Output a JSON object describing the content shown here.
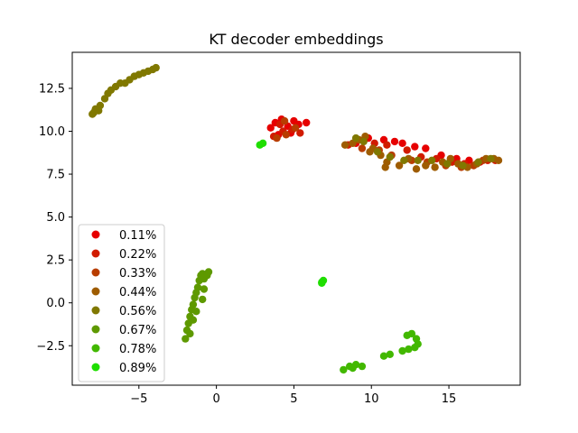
{
  "chart_data": {
    "type": "scatter",
    "title": "KT decoder embeddings",
    "xlabel": "",
    "ylabel": "",
    "xlim": [
      -9.3,
      19.6
    ],
    "ylim": [
      -4.8,
      14.6
    ],
    "xticks": [
      -5,
      0,
      5,
      10,
      15
    ],
    "xtick_labels": [
      "−5",
      "0",
      "5",
      "10",
      "15"
    ],
    "yticks": [
      -2.5,
      0.0,
      2.5,
      5.0,
      7.5,
      10.0,
      12.5
    ],
    "ytick_labels": [
      "−2.5",
      "0.0",
      "2.5",
      "5.0",
      "7.5",
      "10.0",
      "12.5"
    ],
    "grid": false,
    "legend_position": "lower-left",
    "series": [
      {
        "name": "0.11%",
        "color": "#e60000",
        "points": [
          [
            3.5,
            10.2
          ],
          [
            3.8,
            10.5
          ],
          [
            4.2,
            10.7
          ],
          [
            4.6,
            10.3
          ],
          [
            5.0,
            10.6
          ],
          [
            5.3,
            10.4
          ],
          [
            5.8,
            10.5
          ],
          [
            4.0,
            9.8
          ],
          [
            4.8,
            9.9
          ],
          [
            10.8,
            9.5
          ],
          [
            11.5,
            9.4
          ],
          [
            12.0,
            9.3
          ],
          [
            12.8,
            9.1
          ],
          [
            13.5,
            9.0
          ],
          [
            14.5,
            8.6
          ],
          [
            15.5,
            8.4
          ],
          [
            16.3,
            8.3
          ],
          [
            17.0,
            8.2
          ],
          [
            9.0,
            9.3
          ],
          [
            9.8,
            9.6
          ]
        ]
      },
      {
        "name": "0.22%",
        "color": "#d11b00",
        "points": [
          [
            3.7,
            9.7
          ],
          [
            4.3,
            10.0
          ],
          [
            4.9,
            10.1
          ],
          [
            5.4,
            9.9
          ],
          [
            4.1,
            10.4
          ],
          [
            10.2,
            9.3
          ],
          [
            11.0,
            9.2
          ],
          [
            12.3,
            8.9
          ],
          [
            13.2,
            8.5
          ],
          [
            14.2,
            8.4
          ],
          [
            15.2,
            8.2
          ],
          [
            16.0,
            8.1
          ],
          [
            17.5,
            8.3
          ],
          [
            18.0,
            8.3
          ],
          [
            8.5,
            9.2
          ]
        ]
      },
      {
        "name": "0.33%",
        "color": "#b83d00",
        "points": [
          [
            3.9,
            9.6
          ],
          [
            4.5,
            9.8
          ],
          [
            5.1,
            10.2
          ],
          [
            4.4,
            10.6
          ],
          [
            9.4,
            9.0
          ],
          [
            10.5,
            8.9
          ],
          [
            11.3,
            8.6
          ],
          [
            12.6,
            8.3
          ],
          [
            13.6,
            8.2
          ],
          [
            14.8,
            8.0
          ],
          [
            15.8,
            7.9
          ],
          [
            16.6,
            8.0
          ],
          [
            17.2,
            8.3
          ]
        ]
      },
      {
        "name": "0.44%",
        "color": "#9e5c00",
        "points": [
          [
            8.3,
            9.2
          ],
          [
            8.8,
            9.3
          ],
          [
            9.2,
            9.5
          ],
          [
            9.6,
            9.7
          ],
          [
            10.1,
            9.0
          ],
          [
            10.6,
            8.6
          ],
          [
            11.0,
            8.2
          ],
          [
            11.8,
            8.0
          ],
          [
            12.4,
            8.4
          ],
          [
            12.9,
            7.8
          ],
          [
            13.5,
            8.0
          ],
          [
            14.1,
            7.9
          ],
          [
            14.6,
            8.2
          ],
          [
            15.1,
            8.4
          ],
          [
            15.6,
            8.1
          ],
          [
            16.2,
            7.9
          ],
          [
            16.8,
            8.1
          ],
          [
            17.4,
            8.4
          ],
          [
            17.9,
            8.4
          ],
          [
            18.2,
            8.3
          ],
          [
            10.9,
            7.9
          ],
          [
            9.9,
            8.8
          ]
        ]
      },
      {
        "name": "0.56%",
        "color": "#807800",
        "points": [
          [
            -8.0,
            11.0
          ],
          [
            -7.8,
            11.3
          ],
          [
            -7.6,
            11.2
          ],
          [
            -7.5,
            11.5
          ],
          [
            -7.9,
            11.1
          ],
          [
            -7.2,
            11.9
          ],
          [
            -7.0,
            12.2
          ],
          [
            -6.8,
            12.4
          ],
          [
            -6.5,
            12.6
          ],
          [
            -6.2,
            12.8
          ],
          [
            -5.9,
            12.8
          ],
          [
            -5.6,
            13.0
          ],
          [
            -5.3,
            13.2
          ],
          [
            -5.0,
            13.3
          ],
          [
            -4.7,
            13.4
          ],
          [
            -4.4,
            13.5
          ],
          [
            -4.1,
            13.6
          ],
          [
            -3.9,
            13.7
          ],
          [
            9.0,
            9.6
          ],
          [
            9.5,
            9.4
          ],
          [
            10.4,
            8.8
          ],
          [
            11.2,
            8.5
          ],
          [
            12.1,
            8.3
          ],
          [
            13.0,
            8.3
          ],
          [
            13.9,
            8.3
          ],
          [
            14.9,
            8.1
          ],
          [
            15.9,
            8.0
          ],
          [
            16.9,
            8.2
          ],
          [
            17.7,
            8.4
          ]
        ]
      },
      {
        "name": "0.67%",
        "color": "#5e9900",
        "points": [
          [
            -2.0,
            -2.1
          ],
          [
            -1.9,
            -1.6
          ],
          [
            -1.8,
            -1.2
          ],
          [
            -1.7,
            -0.8
          ],
          [
            -1.6,
            -0.4
          ],
          [
            -1.5,
            -0.1
          ],
          [
            -1.4,
            0.3
          ],
          [
            -1.3,
            0.6
          ],
          [
            -1.2,
            0.9
          ],
          [
            -1.1,
            1.3
          ],
          [
            -1.0,
            1.6
          ],
          [
            -0.9,
            1.7
          ],
          [
            -0.8,
            1.4
          ],
          [
            -0.6,
            1.6
          ],
          [
            -0.5,
            1.8
          ],
          [
            -1.7,
            -1.8
          ],
          [
            -1.5,
            -1.0
          ],
          [
            -1.3,
            -0.5
          ],
          [
            -0.9,
            0.2
          ],
          [
            -0.8,
            0.8
          ]
        ]
      },
      {
        "name": "0.78%",
        "color": "#42b800",
        "points": [
          [
            8.2,
            -3.9
          ],
          [
            8.6,
            -3.7
          ],
          [
            9.0,
            -3.6
          ],
          [
            9.4,
            -3.7
          ],
          [
            8.8,
            -3.8
          ],
          [
            10.8,
            -3.1
          ],
          [
            11.2,
            -3.0
          ],
          [
            12.0,
            -2.8
          ],
          [
            12.4,
            -2.7
          ],
          [
            12.8,
            -2.6
          ],
          [
            13.0,
            -2.4
          ],
          [
            12.9,
            -2.1
          ],
          [
            12.3,
            -1.9
          ],
          [
            12.6,
            -1.8
          ]
        ]
      },
      {
        "name": "0.89%",
        "color": "#1fde00",
        "points": [
          [
            2.8,
            9.2
          ],
          [
            3.0,
            9.3
          ],
          [
            6.8,
            1.2
          ],
          [
            6.9,
            1.3
          ],
          [
            6.8,
            1.15
          ]
        ]
      }
    ]
  }
}
